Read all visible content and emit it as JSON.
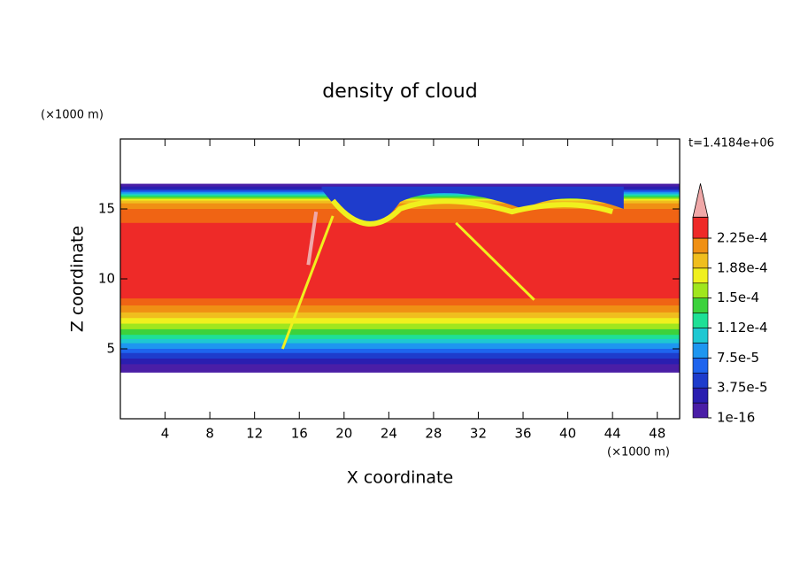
{
  "chart_data": {
    "type": "contour",
    "title": "density of cloud",
    "x_label": "X coordinate",
    "y_label": "Z coordinate",
    "x_unit": "(×1000 m)",
    "y_unit": "(×1000 m)",
    "time_label": "t=1.4184e+06",
    "xlim": [
      0,
      50
    ],
    "ylim": [
      0,
      20
    ],
    "xticks": [
      4,
      8,
      12,
      16,
      20,
      24,
      28,
      32,
      36,
      40,
      44,
      48
    ],
    "yticks": [
      5,
      10,
      15
    ],
    "colorbar": {
      "levels": [
        1e-16,
        1.875e-05,
        3.75e-05,
        5.625e-05,
        7.5e-05,
        9.375e-05,
        0.0001125,
        0.00013125,
        0.00015,
        0.00016875,
        0.0001875,
        0.00020625,
        0.000225
      ],
      "colors": [
        "#4a1ea6",
        "#2a1eb0",
        "#1e3ccc",
        "#1e64ee",
        "#1e96f0",
        "#1ec8d2",
        "#1ee096",
        "#3cd23c",
        "#a0e61e",
        "#f0f01e",
        "#f0be1e",
        "#f09014",
        "#f06414",
        "#ee2a28"
      ],
      "extend_color": "#f0a8a8",
      "ticks": [
        {
          "value": 1e-16,
          "label": "1e-16"
        },
        {
          "value": 3.75e-05,
          "label": "3.75e-5"
        },
        {
          "value": 7.5e-05,
          "label": "7.5e-5"
        },
        {
          "value": 0.0001125,
          "label": "1.12e-4"
        },
        {
          "value": 0.00015,
          "label": "1.5e-4"
        },
        {
          "value": 0.0001875,
          "label": "1.88e-4"
        },
        {
          "value": 0.000225,
          "label": "2.25e-4"
        }
      ]
    }
  }
}
